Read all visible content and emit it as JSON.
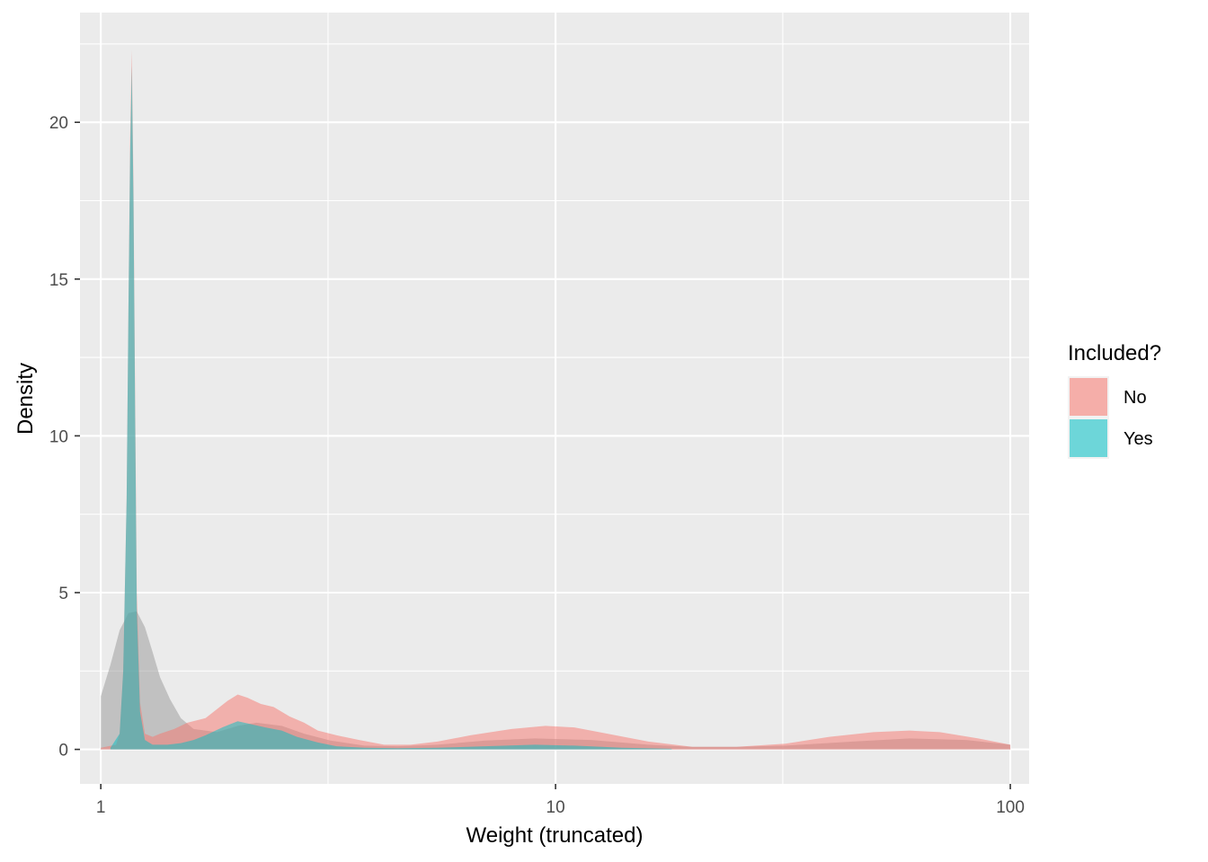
{
  "chart_data": {
    "type": "area",
    "title": "",
    "xlabel": "Weight (truncated)",
    "ylabel": "Density",
    "x_scale": "log10",
    "xlim": [
      0.9,
      110
    ],
    "ylim": [
      -1.1,
      23.5
    ],
    "x_ticks": [
      1,
      3.16,
      10,
      31.6,
      100
    ],
    "x_tick_labels": [
      "1",
      "",
      "10",
      "",
      "100"
    ],
    "y_ticks": [
      0,
      2.5,
      5,
      7.5,
      10,
      12.5,
      15,
      17.5,
      20,
      22.5
    ],
    "y_tick_labels": [
      "0",
      "",
      "5",
      "",
      "10",
      "",
      "15",
      "",
      "20",
      ""
    ],
    "grid": true,
    "panel_background": "#ebebeb",
    "legend": {
      "title": "Included?",
      "position": "right",
      "entries": [
        {
          "label": "No",
          "color": "#f8766d"
        },
        {
          "label": "Yes",
          "color": "#00bfc4"
        }
      ]
    },
    "series": [
      {
        "name": "",
        "color": "#9e9e9e",
        "opacity": 0.55,
        "x": [
          1.0,
          1.05,
          1.1,
          1.15,
          1.2,
          1.25,
          1.3,
          1.35,
          1.42,
          1.5,
          1.6,
          1.8,
          2.0,
          2.2,
          2.5,
          2.8,
          3.2,
          3.8,
          4.5,
          5.5,
          7,
          9,
          12,
          16,
          20,
          25,
          32,
          45,
          60,
          80,
          100
        ],
        "y": [
          1.7,
          2.7,
          3.8,
          4.35,
          4.4,
          3.9,
          3.1,
          2.3,
          1.6,
          1.0,
          0.65,
          0.55,
          0.75,
          0.85,
          0.75,
          0.5,
          0.28,
          0.12,
          0.1,
          0.15,
          0.28,
          0.35,
          0.3,
          0.15,
          0.08,
          0.08,
          0.12,
          0.25,
          0.35,
          0.3,
          0.15
        ]
      },
      {
        "name": "No",
        "color": "#f8766d",
        "opacity": 0.5,
        "x": [
          1.0,
          1.08,
          1.1,
          1.12,
          1.14,
          1.15,
          1.16,
          1.17,
          1.18,
          1.19,
          1.2,
          1.22,
          1.25,
          1.3,
          1.35,
          1.45,
          1.55,
          1.7,
          1.9,
          2.0,
          2.1,
          2.25,
          2.4,
          2.6,
          2.8,
          3.0,
          3.3,
          3.7,
          4.2,
          4.8,
          5.5,
          6.5,
          8,
          9.5,
          11,
          13,
          16,
          20,
          25,
          32,
          40,
          50,
          60,
          70,
          85,
          100
        ],
        "y": [
          0.05,
          0.15,
          0.5,
          2.5,
          8.0,
          14.0,
          19.5,
          22.3,
          18.0,
          11.0,
          5.0,
          1.5,
          0.5,
          0.4,
          0.5,
          0.65,
          0.85,
          1.0,
          1.55,
          1.75,
          1.65,
          1.45,
          1.35,
          1.05,
          0.85,
          0.6,
          0.45,
          0.3,
          0.15,
          0.15,
          0.25,
          0.45,
          0.65,
          0.75,
          0.7,
          0.5,
          0.25,
          0.08,
          0.08,
          0.18,
          0.4,
          0.55,
          0.6,
          0.55,
          0.35,
          0.15
        ]
      },
      {
        "name": "Yes",
        "color": "#00bfc4",
        "opacity": 0.5,
        "x": [
          1.05,
          1.1,
          1.12,
          1.14,
          1.15,
          1.16,
          1.17,
          1.18,
          1.19,
          1.2,
          1.22,
          1.25,
          1.3,
          1.4,
          1.5,
          1.6,
          1.7,
          1.85,
          2.0,
          2.15,
          2.3,
          2.5,
          2.7,
          3.0,
          3.3,
          3.8,
          4.5,
          5.5,
          7,
          9,
          11,
          14,
          18
        ],
        "y": [
          0.05,
          0.5,
          2.5,
          8.0,
          14.0,
          19.0,
          21.8,
          17.5,
          10.5,
          4.5,
          1.2,
          0.3,
          0.15,
          0.15,
          0.2,
          0.3,
          0.45,
          0.7,
          0.9,
          0.8,
          0.7,
          0.6,
          0.4,
          0.22,
          0.1,
          0.05,
          0.04,
          0.05,
          0.1,
          0.15,
          0.12,
          0.05,
          0.02
        ]
      }
    ]
  }
}
